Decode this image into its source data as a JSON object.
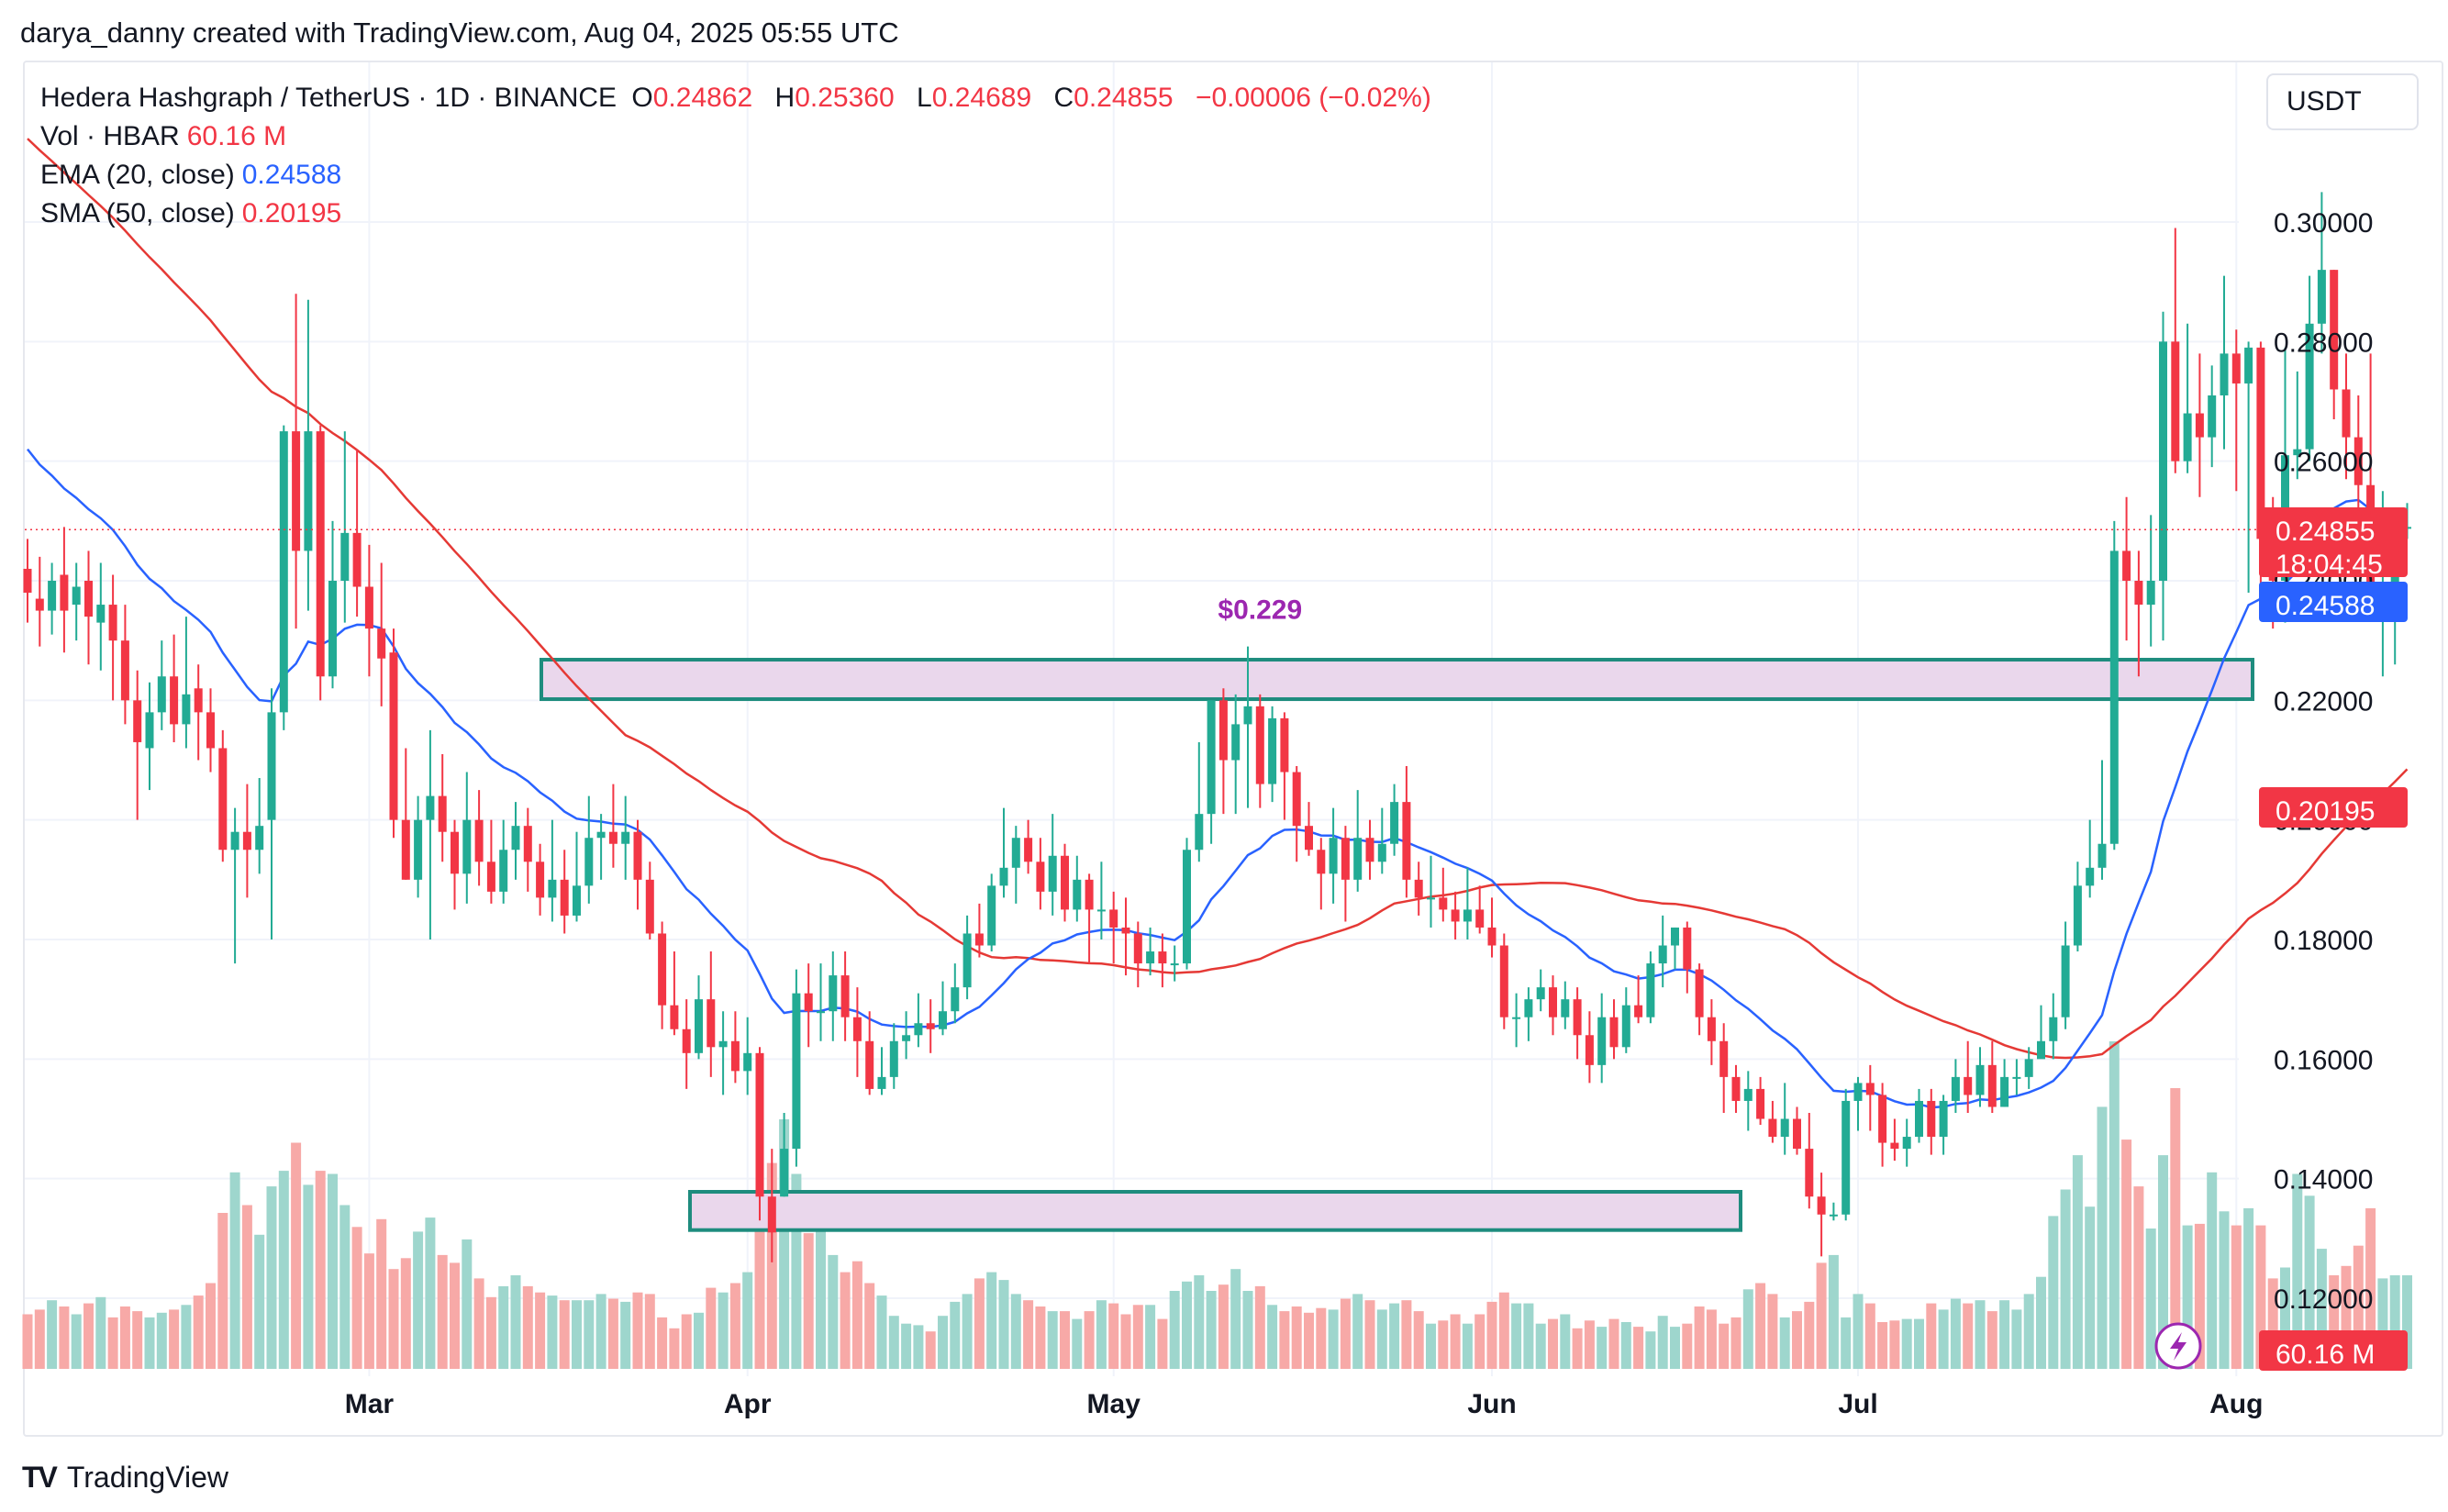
{
  "header": {
    "credit": "darya_danny created with TradingView.com, Aug 04, 2025 05:55 UTC"
  },
  "legend": {
    "symbol": "Hedera Hashgraph / TetherUS · 1D · BINANCE",
    "o_label": "O",
    "o": "0.24862",
    "h_label": "H",
    "h": "0.25360",
    "l_label": "L",
    "l": "0.24689",
    "c_label": "C",
    "c": "0.24855",
    "change": "−0.00006 (−0.02%)",
    "vol_label": "Vol · HBAR",
    "vol": "60.16 M",
    "ema_label": "EMA (20, close)",
    "ema": "0.24588",
    "sma_label": "SMA (50, close)",
    "sma": "0.20195"
  },
  "currency_button": "USDT",
  "footer": {
    "logo": "TV",
    "brand": "TradingView"
  },
  "colors": {
    "up": "#22ab94",
    "down": "#f23645",
    "ema": "#2962ff",
    "sma": "#e53935",
    "zone_fill": "#ead7ec",
    "zone_border": "#1e8c7e",
    "annotation": "#9c27b0"
  },
  "chart_data": {
    "type": "candlestick",
    "interval": "1D",
    "y_range": [
      0.113,
      0.312
    ],
    "y_ticks": [
      "0.12000",
      "0.14000",
      "0.16000",
      "0.18000",
      "0.20000",
      "0.22000",
      "0.24000",
      "0.26000",
      "0.28000",
      "0.30000"
    ],
    "x_ticks": [
      {
        "label": "Mar",
        "day": 28
      },
      {
        "label": "Apr",
        "day": 59
      },
      {
        "label": "May",
        "day": 89
      },
      {
        "label": "Jun",
        "day": 120
      },
      {
        "label": "Jul",
        "day": 150
      },
      {
        "label": "Aug",
        "day": 181
      }
    ],
    "start_date": "2025-01-31",
    "candles": [
      [
        0.242,
        0.238,
        0.247,
        0.233
      ],
      [
        0.237,
        0.235,
        0.244,
        0.229
      ],
      [
        0.235,
        0.24,
        0.243,
        0.231
      ],
      [
        0.241,
        0.235,
        0.249,
        0.228
      ],
      [
        0.236,
        0.239,
        0.243,
        0.23
      ],
      [
        0.24,
        0.234,
        0.245,
        0.226
      ],
      [
        0.233,
        0.236,
        0.243,
        0.225
      ],
      [
        0.236,
        0.23,
        0.241,
        0.22
      ],
      [
        0.23,
        0.22,
        0.236,
        0.216
      ],
      [
        0.22,
        0.213,
        0.225,
        0.2
      ],
      [
        0.212,
        0.218,
        0.223,
        0.205
      ],
      [
        0.218,
        0.224,
        0.23,
        0.215
      ],
      [
        0.224,
        0.216,
        0.231,
        0.213
      ],
      [
        0.216,
        0.221,
        0.234,
        0.212
      ],
      [
        0.222,
        0.218,
        0.226,
        0.21
      ],
      [
        0.218,
        0.212,
        0.222,
        0.208
      ],
      [
        0.212,
        0.195,
        0.215,
        0.193
      ],
      [
        0.195,
        0.198,
        0.202,
        0.176
      ],
      [
        0.198,
        0.195,
        0.206,
        0.187
      ],
      [
        0.195,
        0.199,
        0.207,
        0.191
      ],
      [
        0.2,
        0.218,
        0.222,
        0.18
      ],
      [
        0.218,
        0.265,
        0.266,
        0.215
      ],
      [
        0.265,
        0.245,
        0.288,
        0.232
      ],
      [
        0.245,
        0.265,
        0.287,
        0.235
      ],
      [
        0.265,
        0.224,
        0.266,
        0.22
      ],
      [
        0.224,
        0.24,
        0.25,
        0.222
      ],
      [
        0.24,
        0.248,
        0.265,
        0.233
      ],
      [
        0.248,
        0.239,
        0.262,
        0.234
      ],
      [
        0.239,
        0.232,
        0.246,
        0.224
      ],
      [
        0.232,
        0.227,
        0.243,
        0.219
      ],
      [
        0.228,
        0.2,
        0.232,
        0.197
      ],
      [
        0.2,
        0.19,
        0.212,
        0.19
      ],
      [
        0.19,
        0.2,
        0.204,
        0.187
      ],
      [
        0.2,
        0.204,
        0.215,
        0.18
      ],
      [
        0.204,
        0.198,
        0.211,
        0.193
      ],
      [
        0.198,
        0.191,
        0.2,
        0.185
      ],
      [
        0.191,
        0.2,
        0.208,
        0.186
      ],
      [
        0.2,
        0.193,
        0.205,
        0.189
      ],
      [
        0.193,
        0.188,
        0.2,
        0.186
      ],
      [
        0.188,
        0.195,
        0.2,
        0.186
      ],
      [
        0.195,
        0.199,
        0.203,
        0.19
      ],
      [
        0.199,
        0.193,
        0.202,
        0.188
      ],
      [
        0.193,
        0.187,
        0.196,
        0.184
      ],
      [
        0.187,
        0.19,
        0.2,
        0.183
      ],
      [
        0.19,
        0.184,
        0.195,
        0.181
      ],
      [
        0.184,
        0.189,
        0.198,
        0.183
      ],
      [
        0.189,
        0.197,
        0.204,
        0.186
      ],
      [
        0.197,
        0.198,
        0.201,
        0.19
      ],
      [
        0.198,
        0.196,
        0.206,
        0.192
      ],
      [
        0.196,
        0.198,
        0.204,
        0.19
      ],
      [
        0.198,
        0.19,
        0.2,
        0.185
      ],
      [
        0.19,
        0.181,
        0.193,
        0.18
      ],
      [
        0.181,
        0.169,
        0.183,
        0.165
      ],
      [
        0.169,
        0.165,
        0.178,
        0.164
      ],
      [
        0.165,
        0.161,
        0.17,
        0.155
      ],
      [
        0.161,
        0.17,
        0.174,
        0.16
      ],
      [
        0.17,
        0.162,
        0.178,
        0.157
      ],
      [
        0.162,
        0.163,
        0.168,
        0.154
      ],
      [
        0.163,
        0.158,
        0.168,
        0.156
      ],
      [
        0.158,
        0.161,
        0.167,
        0.154
      ],
      [
        0.161,
        0.137,
        0.162,
        0.133
      ],
      [
        0.137,
        0.131,
        0.145,
        0.126
      ],
      [
        0.137,
        0.145,
        0.151,
        0.137
      ],
      [
        0.145,
        0.171,
        0.175,
        0.142
      ],
      [
        0.171,
        0.168,
        0.176,
        0.162
      ],
      [
        0.168,
        0.168,
        0.176,
        0.163
      ],
      [
        0.168,
        0.174,
        0.178,
        0.163
      ],
      [
        0.174,
        0.167,
        0.178,
        0.163
      ],
      [
        0.167,
        0.163,
        0.172,
        0.157
      ],
      [
        0.163,
        0.155,
        0.168,
        0.154
      ],
      [
        0.155,
        0.157,
        0.162,
        0.154
      ],
      [
        0.157,
        0.163,
        0.166,
        0.155
      ],
      [
        0.163,
        0.164,
        0.168,
        0.16
      ],
      [
        0.164,
        0.166,
        0.171,
        0.162
      ],
      [
        0.166,
        0.165,
        0.17,
        0.161
      ],
      [
        0.165,
        0.168,
        0.173,
        0.164
      ],
      [
        0.168,
        0.172,
        0.176,
        0.166
      ],
      [
        0.172,
        0.181,
        0.184,
        0.17
      ],
      [
        0.181,
        0.179,
        0.186,
        0.177
      ],
      [
        0.179,
        0.189,
        0.191,
        0.178
      ],
      [
        0.189,
        0.192,
        0.202,
        0.187
      ],
      [
        0.192,
        0.197,
        0.199,
        0.186
      ],
      [
        0.197,
        0.193,
        0.2,
        0.191
      ],
      [
        0.193,
        0.188,
        0.197,
        0.185
      ],
      [
        0.188,
        0.194,
        0.201,
        0.184
      ],
      [
        0.194,
        0.185,
        0.196,
        0.183
      ],
      [
        0.185,
        0.19,
        0.194,
        0.183
      ],
      [
        0.19,
        0.185,
        0.191,
        0.176
      ],
      [
        0.185,
        0.185,
        0.193,
        0.18
      ],
      [
        0.185,
        0.182,
        0.188,
        0.176
      ],
      [
        0.182,
        0.181,
        0.187,
        0.174
      ],
      [
        0.181,
        0.176,
        0.183,
        0.172
      ],
      [
        0.176,
        0.178,
        0.182,
        0.174
      ],
      [
        0.178,
        0.176,
        0.181,
        0.172
      ],
      [
        0.176,
        0.176,
        0.179,
        0.173
      ],
      [
        0.176,
        0.195,
        0.197,
        0.175
      ],
      [
        0.195,
        0.201,
        0.213,
        0.193
      ],
      [
        0.201,
        0.22,
        0.22,
        0.196
      ],
      [
        0.22,
        0.21,
        0.222,
        0.201
      ],
      [
        0.21,
        0.216,
        0.221,
        0.201
      ],
      [
        0.216,
        0.219,
        0.229,
        0.202
      ],
      [
        0.219,
        0.206,
        0.221,
        0.202
      ],
      [
        0.206,
        0.217,
        0.219,
        0.203
      ],
      [
        0.217,
        0.208,
        0.218,
        0.2
      ],
      [
        0.208,
        0.199,
        0.209,
        0.193
      ],
      [
        0.199,
        0.195,
        0.203,
        0.194
      ],
      [
        0.195,
        0.191,
        0.197,
        0.185
      ],
      [
        0.191,
        0.197,
        0.202,
        0.186
      ],
      [
        0.197,
        0.19,
        0.199,
        0.183
      ],
      [
        0.19,
        0.197,
        0.205,
        0.188
      ],
      [
        0.197,
        0.193,
        0.2,
        0.19
      ],
      [
        0.193,
        0.196,
        0.202,
        0.191
      ],
      [
        0.196,
        0.203,
        0.206,
        0.194
      ],
      [
        0.203,
        0.19,
        0.209,
        0.187
      ],
      [
        0.19,
        0.187,
        0.193,
        0.184
      ],
      [
        0.187,
        0.187,
        0.194,
        0.182
      ],
      [
        0.187,
        0.185,
        0.192,
        0.183
      ],
      [
        0.185,
        0.183,
        0.188,
        0.18
      ],
      [
        0.183,
        0.185,
        0.192,
        0.18
      ],
      [
        0.185,
        0.182,
        0.189,
        0.181
      ],
      [
        0.182,
        0.179,
        0.187,
        0.177
      ],
      [
        0.179,
        0.167,
        0.181,
        0.165
      ],
      [
        0.167,
        0.167,
        0.171,
        0.162
      ],
      [
        0.167,
        0.17,
        0.172,
        0.163
      ],
      [
        0.17,
        0.172,
        0.175,
        0.168
      ],
      [
        0.172,
        0.167,
        0.174,
        0.164
      ],
      [
        0.167,
        0.17,
        0.173,
        0.165
      ],
      [
        0.17,
        0.164,
        0.172,
        0.16
      ],
      [
        0.164,
        0.159,
        0.168,
        0.156
      ],
      [
        0.159,
        0.167,
        0.171,
        0.156
      ],
      [
        0.167,
        0.162,
        0.17,
        0.16
      ],
      [
        0.162,
        0.169,
        0.172,
        0.161
      ],
      [
        0.169,
        0.167,
        0.174,
        0.166
      ],
      [
        0.167,
        0.176,
        0.178,
        0.166
      ],
      [
        0.176,
        0.179,
        0.184,
        0.172
      ],
      [
        0.179,
        0.182,
        0.182,
        0.175
      ],
      [
        0.182,
        0.175,
        0.183,
        0.171
      ],
      [
        0.175,
        0.167,
        0.176,
        0.164
      ],
      [
        0.167,
        0.163,
        0.17,
        0.159
      ],
      [
        0.163,
        0.157,
        0.166,
        0.151
      ],
      [
        0.157,
        0.153,
        0.159,
        0.151
      ],
      [
        0.153,
        0.155,
        0.158,
        0.148
      ],
      [
        0.155,
        0.15,
        0.157,
        0.149
      ],
      [
        0.15,
        0.147,
        0.153,
        0.146
      ],
      [
        0.147,
        0.15,
        0.156,
        0.144
      ],
      [
        0.15,
        0.145,
        0.152,
        0.144
      ],
      [
        0.145,
        0.137,
        0.151,
        0.135
      ],
      [
        0.137,
        0.134,
        0.141,
        0.127
      ],
      [
        0.134,
        0.134,
        0.136,
        0.133
      ],
      [
        0.134,
        0.153,
        0.155,
        0.133
      ],
      [
        0.153,
        0.156,
        0.157,
        0.148
      ],
      [
        0.156,
        0.154,
        0.159,
        0.148
      ],
      [
        0.154,
        0.146,
        0.156,
        0.142
      ],
      [
        0.146,
        0.145,
        0.15,
        0.143
      ],
      [
        0.145,
        0.147,
        0.15,
        0.142
      ],
      [
        0.147,
        0.153,
        0.155,
        0.146
      ],
      [
        0.153,
        0.147,
        0.155,
        0.144
      ],
      [
        0.147,
        0.153,
        0.154,
        0.144
      ],
      [
        0.153,
        0.157,
        0.16,
        0.151
      ],
      [
        0.157,
        0.154,
        0.163,
        0.151
      ],
      [
        0.154,
        0.159,
        0.162,
        0.152
      ],
      [
        0.159,
        0.152,
        0.163,
        0.151
      ],
      [
        0.152,
        0.157,
        0.16,
        0.152
      ],
      [
        0.157,
        0.157,
        0.16,
        0.154
      ],
      [
        0.157,
        0.16,
        0.162,
        0.155
      ],
      [
        0.16,
        0.163,
        0.169,
        0.161
      ],
      [
        0.163,
        0.167,
        0.171,
        0.16
      ],
      [
        0.167,
        0.179,
        0.183,
        0.165
      ],
      [
        0.179,
        0.189,
        0.193,
        0.178
      ],
      [
        0.189,
        0.192,
        0.2,
        0.187
      ],
      [
        0.192,
        0.196,
        0.21,
        0.19
      ],
      [
        0.196,
        0.245,
        0.25,
        0.195
      ],
      [
        0.245,
        0.24,
        0.254,
        0.23
      ],
      [
        0.24,
        0.236,
        0.245,
        0.224
      ],
      [
        0.236,
        0.24,
        0.251,
        0.229
      ],
      [
        0.24,
        0.28,
        0.285,
        0.23
      ],
      [
        0.28,
        0.26,
        0.299,
        0.258
      ],
      [
        0.26,
        0.268,
        0.283,
        0.258
      ],
      [
        0.268,
        0.264,
        0.278,
        0.254
      ],
      [
        0.264,
        0.271,
        0.276,
        0.259
      ],
      [
        0.271,
        0.278,
        0.291,
        0.262
      ],
      [
        0.278,
        0.273,
        0.282,
        0.255
      ],
      [
        0.273,
        0.279,
        0.28,
        0.238
      ],
      [
        0.279,
        0.247,
        0.28,
        0.238
      ],
      [
        0.247,
        0.24,
        0.254,
        0.232
      ],
      [
        0.24,
        0.261,
        0.279,
        0.233
      ],
      [
        0.261,
        0.262,
        0.275,
        0.257
      ],
      [
        0.262,
        0.283,
        0.291,
        0.26
      ],
      [
        0.283,
        0.292,
        0.305,
        0.278
      ],
      [
        0.292,
        0.272,
        0.292,
        0.267
      ],
      [
        0.272,
        0.264,
        0.278,
        0.257
      ],
      [
        0.264,
        0.256,
        0.271,
        0.243
      ],
      [
        0.256,
        0.237,
        0.278,
        0.234
      ],
      [
        0.237,
        0.237,
        0.255,
        0.224
      ],
      [
        0.237,
        0.249,
        0.251,
        0.226
      ],
      [
        0.249,
        0.249,
        0.253,
        0.247
      ]
    ],
    "volume_m": [
      35,
      38,
      44,
      40,
      35,
      42,
      46,
      33,
      40,
      37,
      33,
      36,
      38,
      41,
      47,
      55,
      100,
      126,
      105,
      86,
      117,
      127,
      145,
      118,
      127,
      125,
      105,
      91,
      74,
      96,
      64,
      71,
      88,
      97,
      73,
      68,
      83,
      58,
      46,
      53,
      60,
      53,
      49,
      47,
      44,
      44,
      44,
      48,
      45,
      43,
      49,
      48,
      33,
      26,
      35,
      36,
      52,
      49,
      55,
      62,
      101,
      132,
      160,
      125,
      87,
      93,
      73,
      62,
      69,
      55,
      47,
      34,
      29,
      28,
      24,
      34,
      43,
      48,
      58,
      62,
      57,
      48,
      44,
      40,
      37,
      37,
      32,
      37,
      44,
      42,
      35,
      41,
      41,
      32,
      50,
      56,
      60,
      50,
      54,
      64,
      50,
      53,
      41,
      37,
      40,
      36,
      39,
      38,
      45,
      48,
      44,
      38,
      42,
      44,
      37,
      29,
      31,
      35,
      29,
      35,
      43,
      49,
      42,
      42,
      29,
      32,
      35,
      26,
      31,
      27,
      32,
      30,
      27,
      24,
      34,
      27,
      29,
      40,
      38,
      29,
      33,
      51,
      55,
      48,
      33,
      37,
      43,
      68,
      73,
      33,
      48,
      42,
      30,
      31,
      32,
      32,
      42,
      38,
      45,
      42,
      44,
      37,
      44,
      38,
      48,
      59,
      98,
      115,
      137,
      104,
      168,
      210,
      147,
      117,
      90,
      137,
      180,
      92,
      93,
      126,
      101,
      92,
      103,
      92,
      58,
      65,
      125,
      111,
      77,
      60,
      66,
      79,
      103,
      58,
      60,
      60
    ],
    "ema20_last": 0.24588,
    "sma50_last": 0.20195,
    "last_price": "0.24855",
    "countdown": "18:04:45",
    "ema_label": "0.24588",
    "sma_label": "0.20195",
    "vol_label": "60.16 M",
    "zones": [
      [
        0.2202,
        0.2268
      ],
      [
        0.1314,
        0.1378
      ]
    ],
    "annotation": {
      "text": "$0.229",
      "day": 101,
      "price": 0.229
    }
  }
}
